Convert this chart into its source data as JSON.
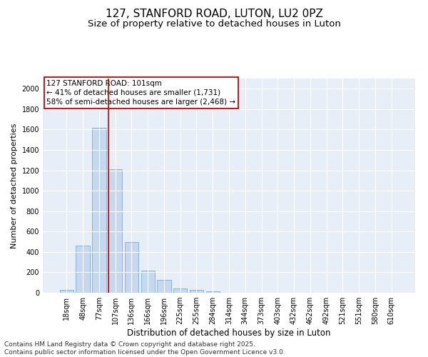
{
  "title": "127, STANFORD ROAD, LUTON, LU2 0PZ",
  "subtitle": "Size of property relative to detached houses in Luton",
  "xlabel": "Distribution of detached houses by size in Luton",
  "ylabel": "Number of detached properties",
  "categories": [
    "18sqm",
    "48sqm",
    "77sqm",
    "107sqm",
    "136sqm",
    "166sqm",
    "196sqm",
    "225sqm",
    "255sqm",
    "284sqm",
    "314sqm",
    "344sqm",
    "373sqm",
    "403sqm",
    "432sqm",
    "462sqm",
    "492sqm",
    "521sqm",
    "551sqm",
    "580sqm",
    "610sqm"
  ],
  "values": [
    30,
    460,
    1620,
    1210,
    500,
    215,
    125,
    45,
    30,
    15,
    0,
    0,
    0,
    0,
    0,
    0,
    0,
    0,
    0,
    0,
    0
  ],
  "bar_color": "#c5d8f0",
  "bar_edge_color": "#7aaad4",
  "vline_color": "#cc0000",
  "vline_x_index": 2.575,
  "annotation_line1": "127 STANFORD ROAD: 101sqm",
  "annotation_line2": "← 41% of detached houses are smaller (1,731)",
  "annotation_line3": "58% of semi-detached houses are larger (2,468) →",
  "annotation_box_edgecolor": "#cc0000",
  "annotation_box_facecolor": "white",
  "ylim": [
    0,
    2100
  ],
  "yticks": [
    0,
    200,
    400,
    600,
    800,
    1000,
    1200,
    1400,
    1600,
    1800,
    2000
  ],
  "background_color": "#e8eef7",
  "grid_color": "white",
  "footer": "Contains HM Land Registry data © Crown copyright and database right 2025.\nContains public sector information licensed under the Open Government Licence v3.0.",
  "title_fontsize": 11,
  "subtitle_fontsize": 9.5,
  "xlabel_fontsize": 8.5,
  "ylabel_fontsize": 8,
  "tick_fontsize": 7,
  "annotation_fontsize": 7.5,
  "footer_fontsize": 6.5
}
